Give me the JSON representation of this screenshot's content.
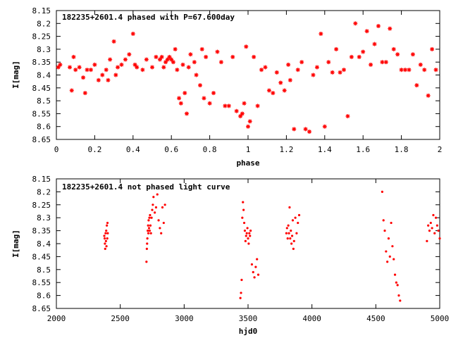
{
  "chart_data": [
    {
      "type": "scatter",
      "title": "182235+2601.4 phased with P=67.600day",
      "xlabel": "phase",
      "ylabel": "I[mag]",
      "xlim": [
        0,
        2
      ],
      "ylim": [
        8.15,
        8.65
      ],
      "y_inverted": true,
      "xticks": [
        "0",
        "0.2",
        "0.4",
        "0.6",
        "0.8",
        "1",
        "1.2",
        "1.4",
        "1.6",
        "1.8",
        "2"
      ],
      "xtick_values": [
        0,
        0.2,
        0.4,
        0.6,
        0.8,
        1.0,
        1.2,
        1.4,
        1.6,
        1.8,
        2.0
      ],
      "yticks": [
        "8.15",
        "8.2",
        "8.25",
        "8.3",
        "8.35",
        "8.4",
        "8.45",
        "8.5",
        "8.55",
        "8.6",
        "8.65"
      ],
      "ytick_values": [
        8.15,
        8.2,
        8.25,
        8.3,
        8.35,
        8.4,
        8.45,
        8.5,
        8.55,
        8.6,
        8.65
      ],
      "marker": "star",
      "color": "#ff0000",
      "series": [
        {
          "x": [
            0.01,
            0.02,
            0.07,
            0.08,
            0.09,
            0.1,
            0.12,
            0.14,
            0.15,
            0.16,
            0.18,
            0.2,
            0.22,
            0.24,
            0.26,
            0.27,
            0.28,
            0.3,
            0.31,
            0.32,
            0.34,
            0.36,
            0.38,
            0.4,
            0.41,
            0.42,
            0.45,
            0.47,
            0.5,
            0.52,
            0.54,
            0.55,
            0.56,
            0.57,
            0.58,
            0.59,
            0.6,
            0.61,
            0.62,
            0.63,
            0.64,
            0.65,
            0.66,
            0.67,
            0.68,
            0.69,
            0.7,
            0.72,
            0.73,
            0.75,
            0.76,
            0.77,
            0.78,
            0.8,
            0.82,
            0.84,
            0.86,
            0.88,
            0.9,
            0.92,
            0.94,
            0.96,
            0.97,
            0.98,
            0.99,
            1.0,
            1.01,
            1.03,
            1.05,
            1.07,
            1.09,
            1.11,
            1.13,
            1.15,
            1.17,
            1.19,
            1.21,
            1.22,
            1.24,
            1.26,
            1.28,
            1.3,
            1.32,
            1.34,
            1.36,
            1.38,
            1.4,
            1.42,
            1.44,
            1.46,
            1.48,
            1.5,
            1.52,
            1.54,
            1.56,
            1.58,
            1.6,
            1.62,
            1.64,
            1.66,
            1.68,
            1.7,
            1.72,
            1.74,
            1.76,
            1.78,
            1.8,
            1.82,
            1.84,
            1.86,
            1.88,
            1.9,
            1.92,
            1.94,
            1.96,
            1.98
          ],
          "y": [
            8.37,
            8.36,
            8.37,
            8.46,
            8.33,
            8.38,
            8.37,
            8.41,
            8.47,
            8.38,
            8.38,
            8.36,
            8.42,
            8.4,
            8.38,
            8.42,
            8.34,
            8.27,
            8.4,
            8.37,
            8.36,
            8.34,
            8.32,
            8.24,
            8.36,
            8.37,
            8.38,
            8.34,
            8.37,
            8.33,
            8.34,
            8.33,
            8.37,
            8.35,
            8.34,
            8.33,
            8.34,
            8.35,
            8.3,
            8.38,
            8.49,
            8.51,
            8.36,
            8.47,
            8.55,
            8.37,
            8.32,
            8.35,
            8.4,
            8.44,
            8.3,
            8.49,
            8.33,
            8.51,
            8.47,
            8.31,
            8.35,
            8.52,
            8.52,
            8.33,
            8.54,
            8.56,
            8.55,
            8.51,
            8.29,
            8.6,
            8.58,
            8.33,
            8.52,
            8.38,
            8.37,
            8.46,
            8.47,
            8.39,
            8.43,
            8.46,
            8.36,
            8.42,
            8.61,
            8.38,
            8.35,
            8.61,
            8.62,
            8.4,
            8.37,
            8.24,
            8.6,
            8.35,
            8.39,
            8.3,
            8.39,
            8.38,
            8.56,
            8.33,
            8.2,
            8.33,
            8.31,
            8.23,
            8.36,
            8.28,
            8.21,
            8.35,
            8.35,
            8.22,
            8.3,
            8.32,
            8.38,
            8.38,
            8.38,
            8.32,
            8.44,
            8.36,
            8.38,
            8.48,
            8.3,
            8.38
          ]
        }
      ]
    },
    {
      "type": "scatter",
      "title": "182235+2601.4 not phased light curve",
      "xlabel": "hjd0",
      "ylabel": "I[mag]",
      "xlim": [
        2000,
        5000
      ],
      "ylim": [
        8.15,
        8.65
      ],
      "y_inverted": true,
      "xticks": [
        "2000",
        "2500",
        "3000",
        "3500",
        "4000",
        "4500",
        "5000"
      ],
      "xtick_values": [
        2000,
        2500,
        3000,
        3500,
        4000,
        4500,
        5000
      ],
      "yticks": [
        "8.15",
        "8.2",
        "8.25",
        "8.3",
        "8.35",
        "8.4",
        "8.45",
        "8.5",
        "8.55",
        "8.6",
        "8.65"
      ],
      "ytick_values": [
        8.15,
        8.2,
        8.25,
        8.3,
        8.35,
        8.4,
        8.45,
        8.5,
        8.55,
        8.6,
        8.65
      ],
      "marker": "dot",
      "color": "#ff0000",
      "series": [
        {
          "x": [
            2375,
            2378,
            2380,
            2382,
            2385,
            2388,
            2390,
            2392,
            2395,
            2398,
            2400,
            2402,
            2705,
            2708,
            2710,
            2712,
            2715,
            2718,
            2720,
            2722,
            2725,
            2728,
            2730,
            2733,
            2736,
            2740,
            2745,
            2750,
            2755,
            2760,
            2770,
            2780,
            2790,
            2800,
            2810,
            2820,
            2830,
            2840,
            2850,
            3440,
            3445,
            3450,
            3455,
            3460,
            3465,
            3470,
            3475,
            3480,
            3485,
            3490,
            3495,
            3500,
            3505,
            3510,
            3515,
            3520,
            3530,
            3540,
            3550,
            3560,
            3570,
            3580,
            3800,
            3805,
            3810,
            3815,
            3820,
            3825,
            3830,
            3835,
            3840,
            3845,
            3850,
            3855,
            3860,
            3870,
            3880,
            3890,
            3900,
            4550,
            4560,
            4570,
            4580,
            4590,
            4600,
            4610,
            4620,
            4630,
            4640,
            4650,
            4660,
            4670,
            4680,
            4690,
            4900,
            4910,
            4920,
            4930,
            4940,
            4950,
            4960,
            4970,
            4980,
            4990,
            5000
          ],
          "y": [
            8.37,
            8.38,
            8.4,
            8.42,
            8.36,
            8.39,
            8.35,
            8.41,
            8.33,
            8.38,
            8.32,
            8.36,
            8.47,
            8.42,
            8.4,
            8.38,
            8.35,
            8.33,
            8.36,
            8.31,
            8.34,
            8.3,
            8.35,
            8.29,
            8.33,
            8.36,
            8.3,
            8.27,
            8.25,
            8.22,
            8.28,
            8.26,
            8.21,
            8.31,
            8.34,
            8.36,
            8.26,
            8.32,
            8.25,
            8.61,
            8.59,
            8.54,
            8.3,
            8.24,
            8.27,
            8.32,
            8.35,
            8.39,
            8.37,
            8.36,
            8.34,
            8.38,
            8.4,
            8.36,
            8.37,
            8.35,
            8.48,
            8.51,
            8.53,
            8.49,
            8.46,
            8.52,
            8.36,
            8.34,
            8.38,
            8.33,
            8.36,
            8.26,
            8.38,
            8.35,
            8.4,
            8.37,
            8.31,
            8.42,
            8.39,
            8.3,
            8.36,
            8.32,
            8.29,
            8.2,
            8.31,
            8.35,
            8.43,
            8.47,
            8.38,
            8.45,
            8.32,
            8.41,
            8.46,
            8.52,
            8.55,
            8.56,
            8.6,
            8.62,
            8.39,
            8.33,
            8.35,
            8.32,
            8.34,
            8.29,
            8.36,
            8.3,
            8.33,
            8.35,
            8.38
          ]
        }
      ]
    }
  ]
}
